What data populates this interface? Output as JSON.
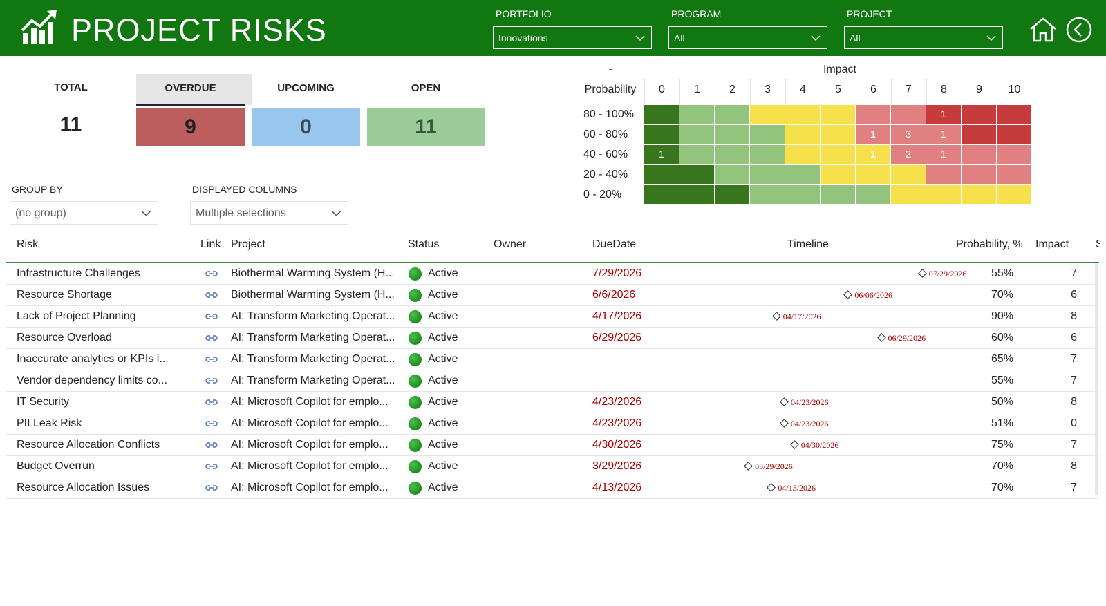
{
  "header": {
    "title": "PROJECT RISKS",
    "logo_icon": "chart-growth-icon",
    "filters": [
      {
        "label": "PORTFOLIO",
        "value": "Innovations"
      },
      {
        "label": "PROGRAM",
        "value": "All"
      },
      {
        "label": "PROJECT",
        "value": "All"
      }
    ],
    "home_icon": "home-icon",
    "back_icon": "back-arrow-icon",
    "color": "#117811"
  },
  "kpis": {
    "total_label": "TOTAL",
    "total_value": "11",
    "overdue_label": "OVERDUE",
    "overdue_value": "9",
    "overdue_color": "#bc5e5e",
    "upcoming_label": "UPCOMING",
    "upcoming_value": "0",
    "upcoming_color": "#99c6ef",
    "open_label": "OPEN",
    "open_value": "11",
    "open_color": "#9bcc98"
  },
  "controls": {
    "group_by_label": "GROUP BY",
    "group_by_value": "(no group)",
    "displayed_columns_label": "DISPLAYED COLUMNS",
    "displayed_columns_value": "Multiple selections"
  },
  "heatmap": {
    "corner": "-",
    "impact_label": "Impact",
    "probability_label": "Probability",
    "impact_values": [
      "0",
      "1",
      "2",
      "3",
      "4",
      "5",
      "6",
      "7",
      "8",
      "9",
      "10"
    ],
    "rows": [
      {
        "label": "80 - 100%",
        "colors": [
          "dg",
          "lg",
          "lg",
          "y",
          "y",
          "y",
          "lr",
          "lr",
          "r",
          "r",
          "r"
        ],
        "counts": [
          "",
          "",
          "",
          "",
          "",
          "",
          "",
          "",
          "1",
          "",
          ""
        ]
      },
      {
        "label": "60 - 80%",
        "colors": [
          "dg",
          "lg",
          "lg",
          "lg",
          "y",
          "y",
          "lr",
          "lr",
          "lr",
          "r",
          "r"
        ],
        "counts": [
          "",
          "",
          "",
          "",
          "",
          "",
          "1",
          "3",
          "1",
          "",
          ""
        ]
      },
      {
        "label": "40 - 60%",
        "colors": [
          "dg",
          "lg",
          "lg",
          "lg",
          "y",
          "y",
          "y",
          "lr",
          "lr",
          "lr",
          "lr"
        ],
        "counts": [
          "1",
          "",
          "",
          "",
          "",
          "",
          "1",
          "2",
          "1",
          "",
          ""
        ]
      },
      {
        "label": "20 - 40%",
        "colors": [
          "dg",
          "dg",
          "lg",
          "lg",
          "lg",
          "y",
          "y",
          "y",
          "lr",
          "lr",
          "lr"
        ],
        "counts": [
          "",
          "",
          "",
          "",
          "",
          "",
          "",
          "",
          "",
          "",
          ""
        ]
      },
      {
        "label": "0 - 20%",
        "colors": [
          "dg",
          "dg",
          "dg",
          "lg",
          "lg",
          "lg",
          "lg",
          "y",
          "y",
          "y",
          "y"
        ],
        "counts": [
          "",
          "",
          "",
          "",
          "",
          "",
          "",
          "",
          "",
          "",
          ""
        ]
      }
    ],
    "palette": {
      "dg": "#38761d",
      "lg": "#93c47d",
      "y": "#f6e04b",
      "lr": "#e08080",
      "r": "#c63c3c"
    }
  },
  "table": {
    "columns": {
      "risk": "Risk",
      "link": "Link",
      "project": "Project",
      "status": "Status",
      "owner": "Owner",
      "duedate": "DueDate",
      "timeline": "Timeline",
      "probability": "Probability, %",
      "impact": "Impact",
      "extra": "S"
    },
    "rows": [
      {
        "risk": "Infrastructure Challenges",
        "project": "Biothermal Warming System (H...",
        "status": "Active",
        "owner": "",
        "duedate": "7/29/2026",
        "milestone": "07/29/2026",
        "mpos": 0.91,
        "probability": "55%",
        "impact": "7"
      },
      {
        "risk": "Resource Shortage",
        "project": "Biothermal Warming System (H...",
        "status": "Active",
        "owner": "",
        "duedate": "6/6/2026",
        "milestone": "06/06/2026",
        "mpos": 0.62,
        "probability": "70%",
        "impact": "6"
      },
      {
        "risk": "Lack of Project Planning",
        "project": "AI: Transform Marketing Operat...",
        "status": "Active",
        "owner": "",
        "duedate": "4/17/2026",
        "milestone": "04/17/2026",
        "mpos": 0.34,
        "probability": "90%",
        "impact": "8"
      },
      {
        "risk": "Resource Overload",
        "project": "AI: Transform Marketing Operat...",
        "status": "Active",
        "owner": "",
        "duedate": "6/29/2026",
        "milestone": "06/29/2026",
        "mpos": 0.75,
        "probability": "60%",
        "impact": "6"
      },
      {
        "risk": "Inaccurate analytics or KPIs l...",
        "project": "AI: Transform Marketing Operat...",
        "status": "Active",
        "owner": "",
        "duedate": "",
        "milestone": "",
        "mpos": null,
        "probability": "65%",
        "impact": "7"
      },
      {
        "risk": "Vendor dependency limits co...",
        "project": "AI: Transform Marketing Operat...",
        "status": "Active",
        "owner": "",
        "duedate": "",
        "milestone": "",
        "mpos": null,
        "probability": "55%",
        "impact": "7"
      },
      {
        "risk": "IT Security",
        "project": "AI: Microsoft Copilot for emplo...",
        "status": "Active",
        "owner": "",
        "duedate": "4/23/2026",
        "milestone": "04/23/2026",
        "mpos": 0.37,
        "probability": "50%",
        "impact": "8"
      },
      {
        "risk": "PII Leak Risk",
        "project": "AI: Microsoft Copilot for emplo...",
        "status": "Active",
        "owner": "",
        "duedate": "4/23/2026",
        "milestone": "04/23/2026",
        "mpos": 0.37,
        "probability": "51%",
        "impact": "0"
      },
      {
        "risk": "Resource Allocation Conflicts",
        "project": "AI: Microsoft Copilot for emplo...",
        "status": "Active",
        "owner": "",
        "duedate": "4/30/2026",
        "milestone": "04/30/2026",
        "mpos": 0.41,
        "probability": "75%",
        "impact": "7"
      },
      {
        "risk": "Budget Overrun",
        "project": "AI: Microsoft Copilot for emplo...",
        "status": "Active",
        "owner": "",
        "duedate": "3/29/2026",
        "milestone": "03/29/2026",
        "mpos": 0.23,
        "probability": "70%",
        "impact": "8"
      },
      {
        "risk": "Resource Allocation Issues",
        "project": "AI: Microsoft Copilot for emplo...",
        "status": "Active",
        "owner": "",
        "duedate": "4/13/2026",
        "milestone": "04/13/2026",
        "mpos": 0.32,
        "probability": "70%",
        "impact": "7"
      }
    ]
  }
}
